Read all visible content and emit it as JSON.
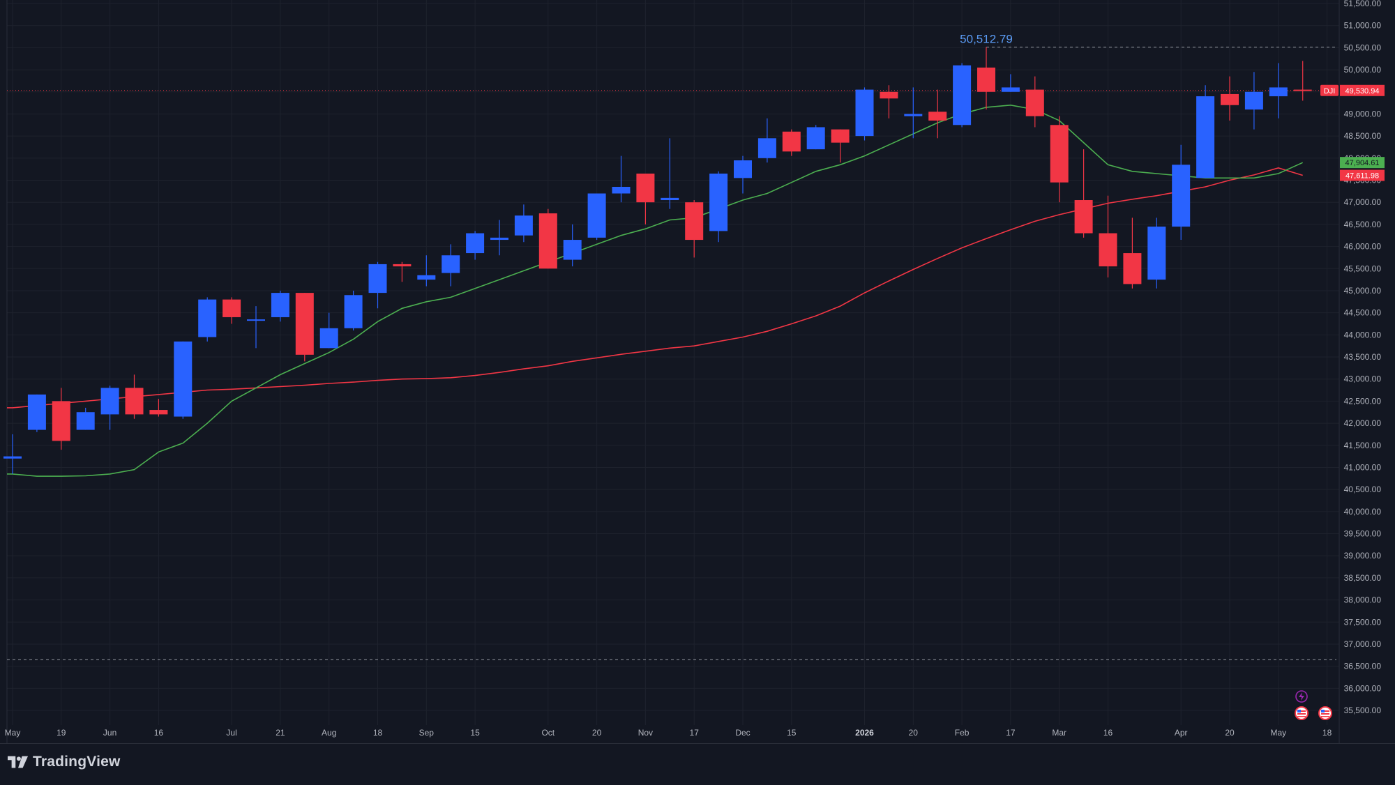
{
  "app": {
    "brand": "TradingView"
  },
  "colors": {
    "background": "#131722",
    "up": "#2962ff",
    "down": "#f23645",
    "ma_fast": "#4caf50",
    "ma_slow": "#f23645",
    "text": "#b2b5be",
    "grid": "#1e222d",
    "highlight_text": "#5b9cf6"
  },
  "icons": [
    "lightning-icon",
    "us-flag-icon"
  ],
  "chart_data": {
    "type": "candlestick",
    "symbol": "DJI",
    "interval": "weekly",
    "ylim": [
      35500,
      51500
    ],
    "y_ticks": [
      35500,
      36000,
      36500,
      37000,
      37500,
      38000,
      38500,
      39000,
      39500,
      40000,
      40500,
      41000,
      41500,
      42000,
      42500,
      43000,
      43500,
      44000,
      44500,
      45000,
      45500,
      46000,
      46500,
      47000,
      47500,
      48000,
      48500,
      49000,
      49500,
      50000,
      50500,
      51000,
      51500
    ],
    "x_labels": [
      {
        "i": 0,
        "label": "May",
        "bold": false
      },
      {
        "i": 2,
        "label": "19",
        "bold": false
      },
      {
        "i": 4,
        "label": "Jun",
        "bold": false
      },
      {
        "i": 6,
        "label": "16",
        "bold": false
      },
      {
        "i": 9,
        "label": "Jul",
        "bold": false
      },
      {
        "i": 11,
        "label": "21",
        "bold": false
      },
      {
        "i": 13,
        "label": "Aug",
        "bold": false
      },
      {
        "i": 15,
        "label": "18",
        "bold": false
      },
      {
        "i": 17,
        "label": "Sep",
        "bold": false
      },
      {
        "i": 19,
        "label": "15",
        "bold": false
      },
      {
        "i": 22,
        "label": "Oct",
        "bold": false
      },
      {
        "i": 24,
        "label": "20",
        "bold": false
      },
      {
        "i": 26,
        "label": "Nov",
        "bold": false
      },
      {
        "i": 28,
        "label": "17",
        "bold": false
      },
      {
        "i": 30,
        "label": "Dec",
        "bold": false
      },
      {
        "i": 32,
        "label": "15",
        "bold": false
      },
      {
        "i": 35,
        "label": "2026",
        "bold": true
      },
      {
        "i": 37,
        "label": "20",
        "bold": false
      },
      {
        "i": 39,
        "label": "Feb",
        "bold": false
      },
      {
        "i": 41,
        "label": "17",
        "bold": false
      },
      {
        "i": 43,
        "label": "Mar",
        "bold": false
      },
      {
        "i": 45,
        "label": "16",
        "bold": false
      },
      {
        "i": 48,
        "label": "Apr",
        "bold": false
      },
      {
        "i": 50,
        "label": "20",
        "bold": false
      },
      {
        "i": 52,
        "label": "May",
        "bold": false
      },
      {
        "i": 54,
        "label": "18",
        "bold": false
      }
    ],
    "candles": [
      {
        "o": 41200,
        "h": 41750,
        "l": 40850,
        "c": 41250
      },
      {
        "o": 41850,
        "h": 42650,
        "l": 41800,
        "c": 42650
      },
      {
        "o": 42500,
        "h": 42800,
        "l": 41400,
        "c": 41600
      },
      {
        "o": 41850,
        "h": 42350,
        "l": 41850,
        "c": 42250
      },
      {
        "o": 42200,
        "h": 42850,
        "l": 41850,
        "c": 42800
      },
      {
        "o": 42800,
        "h": 43100,
        "l": 42100,
        "c": 42200
      },
      {
        "o": 42300,
        "h": 42550,
        "l": 42150,
        "c": 42200
      },
      {
        "o": 42150,
        "h": 43850,
        "l": 42100,
        "c": 43850
      },
      {
        "o": 43950,
        "h": 44850,
        "l": 43850,
        "c": 44800
      },
      {
        "o": 44800,
        "h": 44850,
        "l": 44250,
        "c": 44400
      },
      {
        "o": 44350,
        "h": 44650,
        "l": 43700,
        "c": 44350
      },
      {
        "o": 44400,
        "h": 45000,
        "l": 44300,
        "c": 44950
      },
      {
        "o": 44950,
        "h": 44950,
        "l": 43400,
        "c": 43550
      },
      {
        "o": 43700,
        "h": 44500,
        "l": 43700,
        "c": 44150
      },
      {
        "o": 44150,
        "h": 45000,
        "l": 44100,
        "c": 44900
      },
      {
        "o": 44950,
        "h": 45650,
        "l": 44600,
        "c": 45600
      },
      {
        "o": 45600,
        "h": 45650,
        "l": 45200,
        "c": 45550
      },
      {
        "o": 45250,
        "h": 45800,
        "l": 45100,
        "c": 45350
      },
      {
        "o": 45400,
        "h": 46050,
        "l": 45100,
        "c": 45800
      },
      {
        "o": 45850,
        "h": 46350,
        "l": 45700,
        "c": 46300
      },
      {
        "o": 46150,
        "h": 46600,
        "l": 45800,
        "c": 46200
      },
      {
        "o": 46250,
        "h": 46950,
        "l": 46100,
        "c": 46700
      },
      {
        "o": 46750,
        "h": 46850,
        "l": 45500,
        "c": 45500
      },
      {
        "o": 45700,
        "h": 46500,
        "l": 45550,
        "c": 46150
      },
      {
        "o": 46200,
        "h": 47200,
        "l": 46150,
        "c": 47200
      },
      {
        "o": 47200,
        "h": 48050,
        "l": 47000,
        "c": 47350
      },
      {
        "o": 47650,
        "h": 47650,
        "l": 46500,
        "c": 47000
      },
      {
        "o": 47050,
        "h": 48450,
        "l": 46850,
        "c": 47100
      },
      {
        "o": 47000,
        "h": 47050,
        "l": 45750,
        "c": 46150
      },
      {
        "o": 46350,
        "h": 47700,
        "l": 46100,
        "c": 47650
      },
      {
        "o": 47550,
        "h": 48050,
        "l": 47200,
        "c": 47950
      },
      {
        "o": 48000,
        "h": 48900,
        "l": 47900,
        "c": 48450
      },
      {
        "o": 48600,
        "h": 48650,
        "l": 48050,
        "c": 48150
      },
      {
        "o": 48200,
        "h": 48750,
        "l": 48200,
        "c": 48700
      },
      {
        "o": 48650,
        "h": 48650,
        "l": 47900,
        "c": 48350
      },
      {
        "o": 48500,
        "h": 49600,
        "l": 48400,
        "c": 49550
      },
      {
        "o": 49500,
        "h": 49650,
        "l": 48900,
        "c": 49350
      },
      {
        "o": 48950,
        "h": 49600,
        "l": 48450,
        "c": 49000
      },
      {
        "o": 49050,
        "h": 49550,
        "l": 48450,
        "c": 48850
      },
      {
        "o": 48750,
        "h": 50150,
        "l": 48700,
        "c": 50100
      },
      {
        "o": 50050,
        "h": 50512.79,
        "l": 49100,
        "c": 49500
      },
      {
        "o": 49500,
        "h": 49900,
        "l": 49500,
        "c": 49600
      },
      {
        "o": 49550,
        "h": 49850,
        "l": 48700,
        "c": 48950
      },
      {
        "o": 48750,
        "h": 48950,
        "l": 47000,
        "c": 47450
      },
      {
        "o": 47050,
        "h": 48200,
        "l": 46200,
        "c": 46300
      },
      {
        "o": 46300,
        "h": 47150,
        "l": 45300,
        "c": 45550
      },
      {
        "o": 45850,
        "h": 46650,
        "l": 45050,
        "c": 45150
      },
      {
        "o": 45250,
        "h": 46650,
        "l": 45050,
        "c": 46450
      },
      {
        "o": 46450,
        "h": 48300,
        "l": 46150,
        "c": 47850
      },
      {
        "o": 47550,
        "h": 49650,
        "l": 47550,
        "c": 49400
      },
      {
        "o": 49450,
        "h": 49850,
        "l": 48850,
        "c": 49200
      },
      {
        "o": 49100,
        "h": 49950,
        "l": 48650,
        "c": 49500
      },
      {
        "o": 49400,
        "h": 50150,
        "l": 48900,
        "c": 49600
      },
      {
        "o": 49550,
        "h": 50200,
        "l": 49300,
        "c": 49531
      }
    ],
    "ma_fast": {
      "value_label": "47,904.61",
      "values": [
        40850,
        40800,
        40800,
        40810,
        40850,
        40950,
        41350,
        41550,
        42000,
        42500,
        42800,
        43100,
        43350,
        43600,
        43900,
        44300,
        44600,
        44750,
        44850,
        45050,
        45250,
        45450,
        45650,
        45850,
        46050,
        46250,
        46400,
        46600,
        46650,
        46850,
        47050,
        47200,
        47450,
        47700,
        47850,
        48050,
        48300,
        48550,
        48800,
        49000,
        49150,
        49200,
        49100,
        48850,
        48350,
        47850,
        47700,
        47650,
        47600,
        47550,
        47550,
        47550,
        47650,
        47900
      ]
    },
    "ma_slow": {
      "value_label": "47,611.98",
      "values": [
        42350,
        42400,
        42450,
        42500,
        42550,
        42600,
        42650,
        42700,
        42750,
        42770,
        42800,
        42830,
        42860,
        42900,
        42930,
        42970,
        43000,
        43010,
        43030,
        43080,
        43150,
        43230,
        43300,
        43400,
        43480,
        43560,
        43630,
        43700,
        43750,
        43850,
        43950,
        44080,
        44250,
        44430,
        44650,
        44950,
        45220,
        45480,
        45730,
        45970,
        46180,
        46380,
        46570,
        46720,
        46850,
        46980,
        47070,
        47150,
        47250,
        47350,
        47500,
        47620,
        47780,
        47610
      ]
    },
    "last_price_label": "49,530.94",
    "high_label": "50,512.79",
    "high_value": 50512.79,
    "low_line_value": 36650
  }
}
